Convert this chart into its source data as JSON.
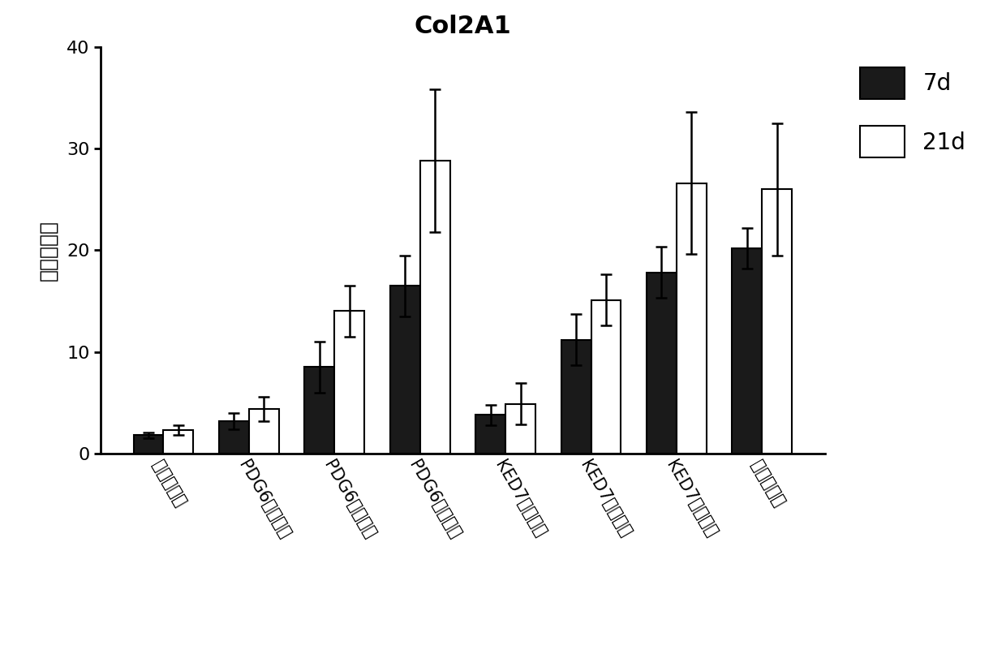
{
  "title": "Col2A1",
  "ylabel": "相对表达量",
  "categories": [
    "模型对照组",
    "PDG6低剂量组",
    "PDG6中剂量组",
    "PDG6高剂量组",
    "KED7低剂量组",
    "KED7中剂量组",
    "KED7高剂量组",
    "阳性对照组"
  ],
  "values_7d": [
    1.8,
    3.2,
    8.5,
    16.5,
    3.8,
    11.2,
    17.8,
    20.2
  ],
  "values_21d": [
    2.3,
    4.4,
    14.0,
    28.8,
    4.9,
    15.1,
    26.6,
    26.0
  ],
  "err_7d": [
    0.3,
    0.8,
    2.5,
    3.0,
    1.0,
    2.5,
    2.5,
    2.0
  ],
  "err_21d": [
    0.5,
    1.2,
    2.5,
    7.0,
    2.0,
    2.5,
    7.0,
    6.5
  ],
  "ylim": [
    0,
    40
  ],
  "yticks": [
    0,
    10,
    20,
    30,
    40
  ],
  "bar_width": 0.35,
  "color_7d": "#1a1a1a",
  "color_21d": "#ffffff",
  "edgecolor": "#000000",
  "title_fontsize": 22,
  "ylabel_fontsize": 18,
  "tick_fontsize": 16,
  "legend_fontsize": 20,
  "xtick_fontsize": 15,
  "legend_7d": "7d",
  "legend_21d": "21d",
  "background_color": "#ffffff",
  "xtick_rotation": -60
}
